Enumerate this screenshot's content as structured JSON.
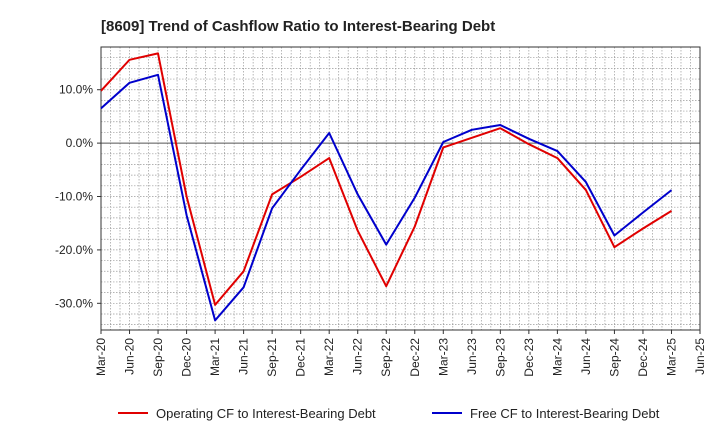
{
  "chart_data": {
    "type": "line",
    "title": "[8609]  Trend of Cashflow Ratio to Interest-Bearing Debt",
    "xlabel": "",
    "ylabel": "",
    "x_ticks": [
      "Mar-20",
      "Jun-20",
      "Sep-20",
      "Dec-20",
      "Mar-21",
      "Jun-21",
      "Sep-21",
      "Dec-21",
      "Mar-22",
      "Jun-22",
      "Sep-22",
      "Dec-22",
      "Mar-23",
      "Jun-23",
      "Sep-23",
      "Dec-23",
      "Mar-24",
      "Jun-24",
      "Sep-24",
      "Dec-24",
      "Mar-25",
      "Jun-25"
    ],
    "y_ticks": [
      10,
      0,
      -10,
      -20,
      -30
    ],
    "y_tick_labels": [
      "10.0%",
      "0.0%",
      "-10.0%",
      "-20.0%",
      "-30.0%"
    ],
    "ylim": [
      -35,
      18
    ],
    "grid": true,
    "legend_position": "bottom",
    "series": [
      {
        "name": "Operating CF to Interest-Bearing Debt",
        "color": "#e00000",
        "x": [
          "Mar-20",
          "Jun-20",
          "Sep-20",
          "Dec-20",
          "Mar-21",
          "Jun-21",
          "Sep-21",
          "Dec-21",
          "Mar-22",
          "Jun-22",
          "Sep-22",
          "Dec-22",
          "Mar-23",
          "Jun-23",
          "Sep-23",
          "Dec-23",
          "Mar-24",
          "Jun-24",
          "Sep-24",
          "Dec-24",
          "Mar-25"
        ],
        "values": [
          9.8,
          15.6,
          16.8,
          -10.0,
          -30.3,
          -24.0,
          -9.6,
          -6.3,
          -2.8,
          -16.4,
          -26.8,
          -15.6,
          -0.8,
          1.0,
          2.8,
          -0.2,
          -2.8,
          -8.8,
          -19.5,
          -16.0,
          -12.7
        ]
      },
      {
        "name": "Free CF to Interest-Bearing Debt",
        "color": "#0000cc",
        "x": [
          "Mar-20",
          "Jun-20",
          "Sep-20",
          "Dec-20",
          "Mar-21",
          "Jun-21",
          "Sep-21",
          "Dec-21",
          "Mar-22",
          "Jun-22",
          "Sep-22",
          "Dec-22",
          "Mar-23",
          "Jun-23",
          "Sep-23",
          "Dec-23",
          "Mar-24",
          "Jun-24",
          "Sep-24",
          "Dec-24",
          "Mar-25"
        ],
        "values": [
          6.5,
          11.3,
          12.8,
          -13.5,
          -33.2,
          -27.0,
          -12.2,
          -5.0,
          1.9,
          -9.6,
          -19.0,
          -10.2,
          0.2,
          2.5,
          3.4,
          0.8,
          -1.5,
          -7.3,
          -17.3,
          -13.0,
          -8.8
        ]
      }
    ]
  }
}
